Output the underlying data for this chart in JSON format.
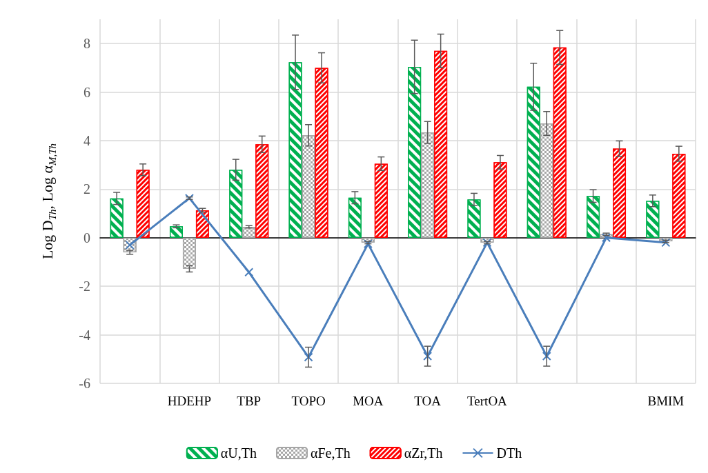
{
  "chart_data": {
    "type": "bar",
    "ylabel": "Log D$_{Th}$, Log α$_{M,Th}$",
    "categories": [
      null,
      "HDEHP",
      "TBP",
      "TOPO",
      "MOA",
      "TOA",
      "TertOA",
      null,
      null,
      "BMIM"
    ],
    "series": [
      {
        "name": "αU,Th",
        "color": "#00b050",
        "values": [
          1.62,
          0.47,
          2.8,
          7.23,
          1.65,
          7.04,
          1.58,
          6.22,
          1.72,
          1.52
        ],
        "errors": [
          0.25,
          0.06,
          0.43,
          1.12,
          0.25,
          1.1,
          0.25,
          0.97,
          0.26,
          0.24
        ]
      },
      {
        "name": "αFe,Th",
        "color": "#a6a6a6",
        "values": [
          -0.6,
          -1.28,
          0.45,
          4.22,
          -0.2,
          4.34,
          -0.2,
          4.71,
          0.14,
          -0.15
        ],
        "errors": [
          0.08,
          0.13,
          0.05,
          0.44,
          0.05,
          0.45,
          0.05,
          0.49,
          0.05,
          0.05
        ]
      },
      {
        "name": "αZr,Th",
        "color": "#ff0000",
        "values": [
          2.8,
          1.13,
          3.85,
          7.0,
          3.05,
          7.7,
          3.11,
          7.84,
          3.67,
          3.46
        ],
        "errors": [
          0.24,
          0.08,
          0.34,
          0.62,
          0.28,
          0.69,
          0.28,
          0.7,
          0.32,
          0.31
        ]
      },
      {
        "name": "DTh",
        "type": "line",
        "color": "#4a7ebb",
        "marker": "cross",
        "values": [
          -0.3,
          1.63,
          -1.42,
          -4.92,
          -0.25,
          -4.88,
          -0.2,
          -4.88,
          0.0,
          -0.2
        ],
        "errors": [
          null,
          0.05,
          null,
          0.41,
          null,
          0.41,
          null,
          0.41,
          null,
          null
        ]
      }
    ],
    "ylim": [
      -6,
      9
    ],
    "yticks": [
      -6,
      -4,
      -2,
      0,
      2,
      4,
      6,
      8
    ],
    "grid": true,
    "legend": "bottom"
  }
}
